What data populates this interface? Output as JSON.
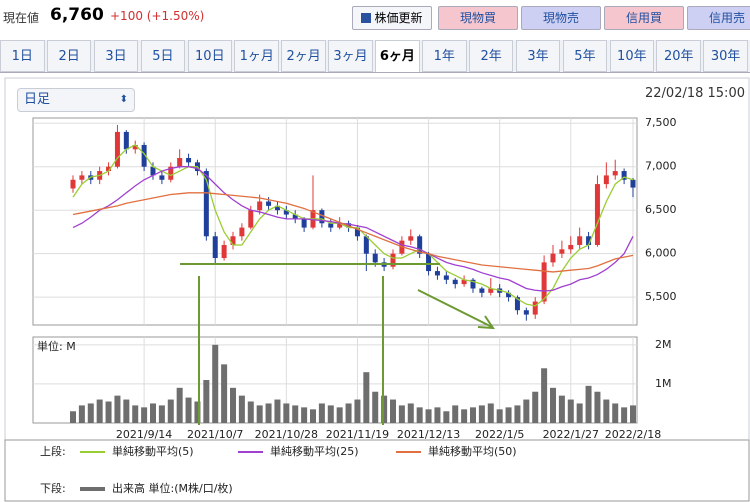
{
  "header": {
    "label": "現在値",
    "price": "6,760",
    "change": "+100 (+1.50%)"
  },
  "buttons": [
    "株価更新",
    "現物買",
    "現物売",
    "信用買",
    "信用売"
  ],
  "tabs": [
    "1日",
    "2日",
    "3日",
    "5日",
    "10日",
    "1ヶ月",
    "2ヶ月",
    "3ヶ月",
    "6ヶ月",
    "1年",
    "2年",
    "3年",
    "5年",
    "10年",
    "20年",
    "30年"
  ],
  "selected_tab": "6ヶ月",
  "period_select": "日足",
  "timestamp": "22/02/18 15:00",
  "chart_data": [
    {
      "type": "candlestick",
      "legend_title": "上段:",
      "up_color": "#e03838",
      "down_color": "#1f3f9a",
      "ylim": [
        5180,
        7560
      ],
      "yticks": [
        {
          "value": 5500,
          "label": "5,500"
        },
        {
          "value": 6000,
          "label": "6,000"
        },
        {
          "value": 6500,
          "label": "6,500"
        },
        {
          "value": 7000,
          "label": "7,000"
        },
        {
          "value": 7500,
          "label": "7,500"
        }
      ],
      "grid": true,
      "candles": [
        [
          6750,
          6900,
          6700,
          6850
        ],
        [
          6850,
          6950,
          6800,
          6900
        ],
        [
          6900,
          6950,
          6800,
          6850
        ],
        [
          6850,
          7000,
          6800,
          6950
        ],
        [
          6950,
          7050,
          6900,
          7000
        ],
        [
          7000,
          7480,
          6980,
          7400
        ],
        [
          7400,
          7420,
          7150,
          7200
        ],
        [
          7200,
          7300,
          7150,
          7250
        ],
        [
          7250,
          7280,
          6950,
          7000
        ],
        [
          7000,
          7050,
          6850,
          6900
        ],
        [
          6900,
          6950,
          6800,
          6850
        ],
        [
          6850,
          7050,
          6820,
          7000
        ],
        [
          7000,
          7200,
          6980,
          7100
        ],
        [
          7100,
          7150,
          7000,
          7050
        ],
        [
          7050,
          7080,
          6900,
          6950
        ],
        [
          6950,
          6980,
          6150,
          6200
        ],
        [
          6200,
          6250,
          5880,
          5950
        ],
        [
          5950,
          6150,
          5920,
          6100
        ],
        [
          6100,
          6250,
          6050,
          6200
        ],
        [
          6200,
          6350,
          6150,
          6300
        ],
        [
          6300,
          6550,
          6280,
          6500
        ],
        [
          6500,
          6680,
          6450,
          6600
        ],
        [
          6600,
          6650,
          6500,
          6550
        ],
        [
          6550,
          6600,
          6450,
          6500
        ],
        [
          6500,
          6550,
          6400,
          6450
        ],
        [
          6450,
          6500,
          6350,
          6400
        ],
        [
          6400,
          6420,
          6250,
          6300
        ],
        [
          6300,
          6900,
          6280,
          6500
        ],
        [
          6500,
          6520,
          6300,
          6350
        ],
        [
          6350,
          6400,
          6250,
          6300
        ],
        [
          6300,
          6420,
          6280,
          6350
        ],
        [
          6350,
          6380,
          6250,
          6300
        ],
        [
          6300,
          6330,
          6150,
          6200
        ],
        [
          6200,
          6220,
          5800,
          6000
        ],
        [
          6000,
          6050,
          5850,
          5900
        ],
        [
          5900,
          5950,
          5800,
          5850
        ],
        [
          5850,
          6050,
          5820,
          6000
        ],
        [
          6000,
          6200,
          5980,
          6150
        ],
        [
          6150,
          6280,
          6100,
          6200
        ],
        [
          6200,
          6220,
          5950,
          6000
        ],
        [
          6000,
          6020,
          5750,
          5800
        ],
        [
          5800,
          5850,
          5700,
          5750
        ],
        [
          5750,
          5800,
          5650,
          5700
        ],
        [
          5700,
          5720,
          5600,
          5650
        ],
        [
          5650,
          5750,
          5620,
          5700
        ],
        [
          5700,
          5720,
          5550,
          5600
        ],
        [
          5600,
          5620,
          5500,
          5550
        ],
        [
          5550,
          5720,
          5520,
          5600
        ],
        [
          5600,
          5650,
          5500,
          5550
        ],
        [
          5550,
          5580,
          5450,
          5500
        ],
        [
          5500,
          5520,
          5300,
          5350
        ],
        [
          5350,
          5380,
          5230,
          5300
        ],
        [
          5300,
          5500,
          5250,
          5450
        ],
        [
          5450,
          5980,
          5420,
          5900
        ],
        [
          5900,
          6100,
          5850,
          6000
        ],
        [
          6000,
          6150,
          5950,
          6050
        ],
        [
          6050,
          6200,
          6000,
          6100
        ],
        [
          6100,
          6300,
          6050,
          6200
        ],
        [
          6200,
          6250,
          6050,
          6100
        ],
        [
          6100,
          6900,
          6080,
          6800
        ],
        [
          6800,
          7050,
          6750,
          6900
        ],
        [
          6900,
          7080,
          6850,
          6950
        ],
        [
          6950,
          6980,
          6800,
          6850
        ],
        [
          6850,
          6870,
          6650,
          6760
        ]
      ],
      "series": [
        {
          "name": "単純移動平均(5)",
          "color": "#9acd32",
          "values": [
            6650,
            6800,
            6880,
            6900,
            6950,
            7100,
            7200,
            7250,
            7150,
            7000,
            6950,
            6900,
            6950,
            7000,
            7000,
            6850,
            6500,
            6250,
            6100,
            6100,
            6250,
            6400,
            6500,
            6550,
            6500,
            6450,
            6400,
            6400,
            6400,
            6350,
            6350,
            6300,
            6300,
            6200,
            6100,
            6000,
            5950,
            5950,
            6000,
            6050,
            6000,
            5900,
            5800,
            5750,
            5700,
            5680,
            5650,
            5600,
            5580,
            5550,
            5480,
            5420,
            5400,
            5480,
            5600,
            5800,
            5950,
            6050,
            6100,
            6350,
            6600,
            6800,
            6880,
            6850
          ]
        },
        {
          "name": "単純移動平均(25)",
          "color": "#a040d0",
          "values": [
            6300,
            6350,
            6420,
            6500,
            6550,
            6620,
            6700,
            6780,
            6850,
            6900,
            6950,
            6980,
            7000,
            7000,
            6980,
            6900,
            6800,
            6700,
            6620,
            6550,
            6500,
            6480,
            6450,
            6420,
            6400,
            6400,
            6400,
            6390,
            6380,
            6370,
            6350,
            6340,
            6320,
            6300,
            6250,
            6200,
            6150,
            6100,
            6080,
            6050,
            6000,
            5950,
            5900,
            5870,
            5850,
            5820,
            5780,
            5750,
            5720,
            5700,
            5650,
            5600,
            5580,
            5570,
            5580,
            5620,
            5650,
            5700,
            5720,
            5760,
            5820,
            5900,
            6000,
            6200
          ]
        },
        {
          "name": "単純移動平均(50)",
          "color": "#e07040",
          "values": [
            6450,
            6470,
            6490,
            6510,
            6530,
            6550,
            6580,
            6600,
            6620,
            6640,
            6660,
            6680,
            6690,
            6700,
            6700,
            6700,
            6690,
            6680,
            6670,
            6660,
            6650,
            6640,
            6620,
            6600,
            6580,
            6550,
            6520,
            6480,
            6440,
            6400,
            6360,
            6320,
            6280,
            6240,
            6200,
            6160,
            6120,
            6080,
            6050,
            6020,
            6000,
            5970,
            5950,
            5930,
            5910,
            5890,
            5870,
            5860,
            5850,
            5840,
            5830,
            5820,
            5810,
            5800,
            5790,
            5800,
            5810,
            5820,
            5830,
            5860,
            5900,
            5940,
            5960,
            5980
          ]
        }
      ]
    },
    {
      "type": "bar",
      "legend_title": "下段:",
      "unit_label": "単位: M",
      "ylim": [
        0,
        2200000
      ],
      "yticks": [
        {
          "value": 1000000,
          "label": "1M"
        },
        {
          "value": 2000000,
          "label": "2M"
        }
      ],
      "grid": true,
      "categories": [
        null,
        null,
        null,
        null,
        null,
        null,
        null,
        null,
        "2021/9/14",
        null,
        null,
        null,
        null,
        null,
        null,
        null,
        "2021/10/7",
        null,
        null,
        null,
        null,
        null,
        null,
        null,
        "2021/10/28",
        null,
        null,
        null,
        null,
        null,
        null,
        null,
        "2021/11/19",
        null,
        null,
        null,
        null,
        null,
        null,
        null,
        "2021/12/13",
        null,
        null,
        null,
        null,
        null,
        null,
        null,
        "2022/1/5",
        null,
        null,
        null,
        null,
        null,
        null,
        null,
        "2022/1/27",
        null,
        null,
        null,
        null,
        null,
        null,
        "2022/2/18"
      ],
      "series": [
        {
          "name": "出来高 単位:(M株/口/枚)",
          "color": "#6e6e6e",
          "values": [
            300000,
            450000,
            500000,
            600000,
            550000,
            700000,
            600000,
            450000,
            400000,
            500000,
            450000,
            600000,
            900000,
            650000,
            550000,
            1100000,
            2000000,
            1500000,
            900000,
            700000,
            550000,
            450000,
            500000,
            600000,
            500000,
            450000,
            400000,
            350000,
            500000,
            450000,
            400000,
            500000,
            600000,
            1300000,
            800000,
            700000,
            600000,
            450000,
            500000,
            400000,
            350000,
            400000,
            300000,
            450000,
            350000,
            400000,
            450000,
            500000,
            350000,
            400000,
            450000,
            600000,
            800000,
            1400000,
            900000,
            700000,
            600000,
            500000,
            950000,
            800000,
            600000,
            500000,
            400000,
            450000
          ]
        }
      ]
    }
  ]
}
